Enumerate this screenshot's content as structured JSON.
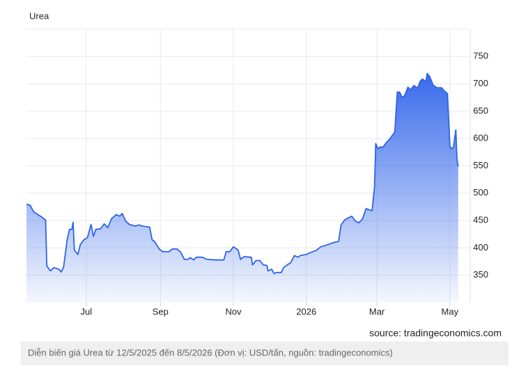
{
  "chart_data": {
    "type": "area",
    "title": "Urea",
    "source": "source: tradingeconomics.com",
    "caption": "Diễn biến giá Urea từ 12/5/2025 đến 8/5/2026 (Đơn vị: USD/tấn, nguồn: tradingeconomics)",
    "color": "#2e63ea",
    "grid": true,
    "y_axis_side": "right",
    "x": [
      "2025-05-12",
      "2025-05-15",
      "2025-05-18",
      "2025-05-25",
      "2025-05-28",
      "2025-05-29",
      "2025-06-01",
      "2025-06-04",
      "2025-06-08",
      "2025-06-10",
      "2025-06-12",
      "2025-06-15",
      "2025-06-17",
      "2025-06-19",
      "2025-06-20",
      "2025-06-21",
      "2025-06-24",
      "2025-06-26",
      "2025-06-29",
      "2025-07-02",
      "2025-07-05",
      "2025-07-07",
      "2025-07-09",
      "2025-07-13",
      "2025-07-16",
      "2025-07-19",
      "2025-07-22",
      "2025-07-26",
      "2025-07-29",
      "2025-07-31",
      "2025-08-03",
      "2025-08-06",
      "2025-08-11",
      "2025-08-14",
      "2025-08-17",
      "2025-08-23",
      "2025-08-25",
      "2025-08-27",
      "2025-08-31",
      "2025-09-03",
      "2025-09-08",
      "2025-09-11",
      "2025-09-15",
      "2025-09-18",
      "2025-09-21",
      "2025-09-24",
      "2025-09-26",
      "2025-09-29",
      "2025-10-01",
      "2025-10-06",
      "2025-10-10",
      "2025-10-17",
      "2025-10-24",
      "2025-10-26",
      "2025-10-29",
      "2025-11-01",
      "2025-11-05",
      "2025-11-07",
      "2025-11-10",
      "2025-11-16",
      "2025-11-17",
      "2025-11-20",
      "2025-11-23",
      "2025-11-26",
      "2025-11-29",
      "2025-11-30",
      "2025-12-03",
      "2025-12-05",
      "2025-12-07",
      "2025-12-11",
      "2025-12-13",
      "2025-12-16",
      "2025-12-19",
      "2025-12-22",
      "2025-12-25",
      "2025-12-27",
      "2026-01-01",
      "2026-01-05",
      "2026-01-09",
      "2026-01-13",
      "2026-01-19",
      "2026-01-24",
      "2026-01-28",
      "2026-01-30",
      "2026-02-02",
      "2026-02-05",
      "2026-02-08",
      "2026-02-11",
      "2026-02-14",
      "2026-02-17",
      "2026-02-20",
      "2026-02-21",
      "2026-02-25",
      "2026-02-27",
      "2026-02-28",
      "2026-03-02",
      "2026-03-04",
      "2026-03-06",
      "2026-03-09",
      "2026-03-12",
      "2026-03-16",
      "2026-03-18",
      "2026-03-20",
      "2026-03-22",
      "2026-03-24",
      "2026-03-27",
      "2026-03-29",
      "2026-04-01",
      "2026-04-04",
      "2026-04-06",
      "2026-04-08",
      "2026-04-11",
      "2026-04-12",
      "2026-04-14",
      "2026-04-17",
      "2026-04-20",
      "2026-04-24",
      "2026-04-26",
      "2026-04-29",
      "2026-05-01",
      "2026-05-02",
      "2026-05-04",
      "2026-05-06",
      "2026-05-07",
      "2026-05-08"
    ],
    "values": [
      480,
      478,
      466,
      456,
      451,
      367,
      358,
      364,
      361,
      356,
      364,
      415,
      434,
      434,
      447,
      396,
      388,
      406,
      415,
      419,
      443,
      421,
      434,
      435,
      444,
      437,
      453,
      461,
      458,
      463,
      449,
      443,
      440,
      442,
      440,
      438,
      415,
      412,
      398,
      393,
      393,
      398,
      398,
      392,
      379,
      379,
      382,
      378,
      383,
      383,
      379,
      378,
      378,
      393,
      393,
      402,
      396,
      379,
      384,
      383,
      369,
      377,
      377,
      369,
      368,
      358,
      361,
      353,
      355,
      355,
      364,
      369,
      373,
      386,
      383,
      386,
      388,
      392,
      395,
      402,
      406,
      410,
      412,
      442,
      451,
      455,
      458,
      449,
      446,
      453,
      472,
      471,
      468,
      511,
      591,
      581,
      585,
      584,
      593,
      600,
      612,
      685,
      685,
      676,
      678,
      694,
      689,
      697,
      692,
      704,
      709,
      704,
      719,
      714,
      698,
      693,
      693,
      688,
      682,
      588,
      581,
      584,
      616,
      561,
      549
    ],
    "xlim": [
      "2025-05-12",
      "2026-05-18"
    ],
    "xticks": [
      {
        "value": "2025-07-01",
        "label": "Jul"
      },
      {
        "value": "2025-09-01",
        "label": "Sep"
      },
      {
        "value": "2025-11-01",
        "label": "Nov"
      },
      {
        "value": "2026-01-01",
        "label": "2026"
      },
      {
        "value": "2026-03-01",
        "label": "Mar"
      },
      {
        "value": "2026-05-01",
        "label": "May"
      }
    ],
    "ylim": [
      300,
      800
    ],
    "yticks": [
      350,
      400,
      450,
      500,
      550,
      600,
      650,
      700,
      750
    ]
  }
}
